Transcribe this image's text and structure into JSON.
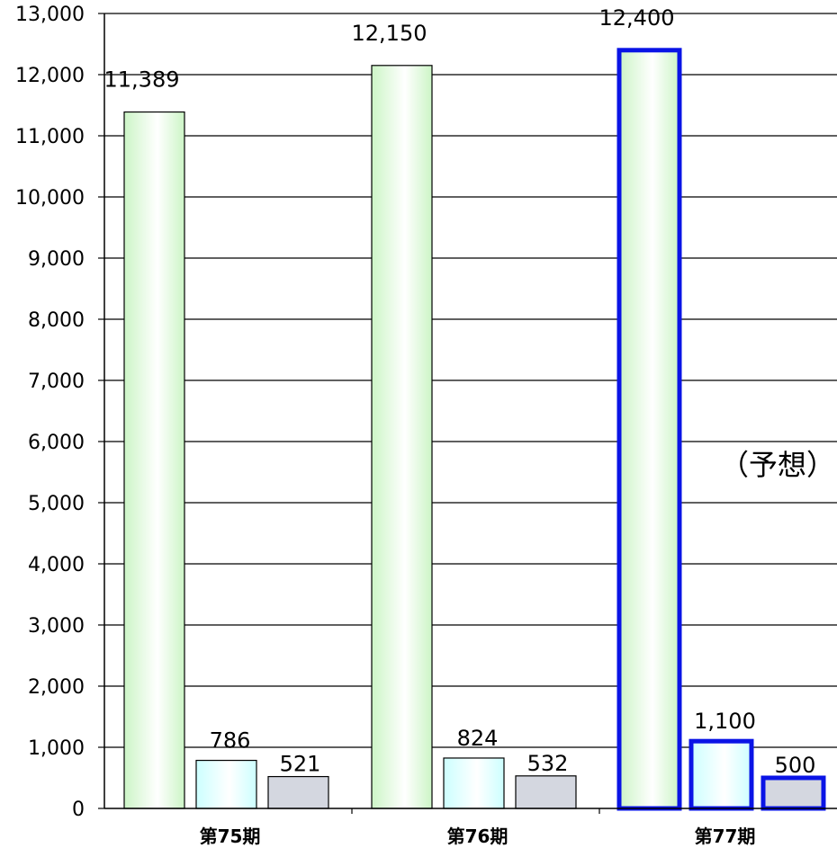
{
  "chart_data": {
    "type": "bar",
    "categories": [
      "第75期",
      "第76期",
      "第77期"
    ],
    "series": [
      {
        "values": [
          11389,
          12150,
          12400
        ],
        "color": "#ccf5c6"
      },
      {
        "values": [
          786,
          824,
          1100
        ],
        "color": "#ccffff"
      },
      {
        "values": [
          521,
          532,
          500
        ],
        "color": "#d4d7e0"
      }
    ],
    "data_labels": [
      [
        "11,389",
        "12,150",
        "12,400"
      ],
      [
        "786",
        "824",
        "1,100"
      ],
      [
        "521",
        "532",
        "500"
      ]
    ],
    "y_ticks": [
      "0",
      "1,000",
      "2,000",
      "3,000",
      "4,000",
      "5,000",
      "6,000",
      "7,000",
      "8,000",
      "9,000",
      "10,000",
      "11,000",
      "12,000",
      "13,000"
    ],
    "ylim": [
      0,
      13000
    ],
    "grid": true,
    "highlight_category_index": 2,
    "highlight_color": "#0a14e6",
    "annotation": "（予想）",
    "title": "",
    "xlabel": "",
    "ylabel": ""
  }
}
